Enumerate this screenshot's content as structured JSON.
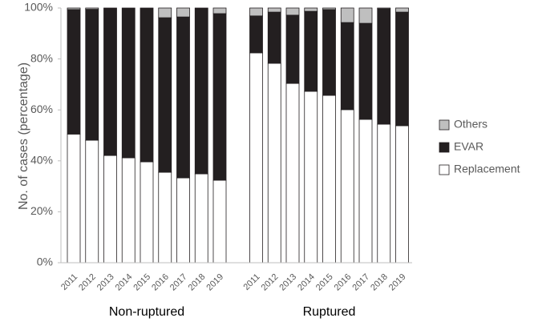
{
  "chart_data": {
    "type": "stacked_bar",
    "y_label": "No. of cases (percentage)",
    "groups": [
      "Non-ruptured",
      "Ruptured"
    ],
    "categories": [
      "2011",
      "2012",
      "2013",
      "2014",
      "2015",
      "2016",
      "2017",
      "2018",
      "2019",
      "2011",
      "2012",
      "2013",
      "2014",
      "2015",
      "2016",
      "2017",
      "2018",
      "2019"
    ],
    "series": [
      {
        "name": "Replacement",
        "color": "#ffffff",
        "values": [
          50.5,
          48.1,
          42.1,
          41.2,
          39.6,
          35.5,
          33.3,
          34.9,
          32.4,
          82.4,
          78.3,
          70.4,
          67.3,
          65.7,
          60.1,
          56.3,
          54.4,
          53.8
        ]
      },
      {
        "name": "EVAR",
        "color": "#231f20",
        "values": [
          48.9,
          51.4,
          57.9,
          58.8,
          60.4,
          60.7,
          63.2,
          65.1,
          65.4,
          14.5,
          20.1,
          26.8,
          31.4,
          33.7,
          34.2,
          37.7,
          45.3,
          44.6
        ]
      },
      {
        "name": "Others",
        "color": "#bfbfbf",
        "values": [
          0.6,
          0.5,
          0,
          0,
          0,
          3.8,
          3.5,
          0,
          2.2,
          3.1,
          1.6,
          2.8,
          1.3,
          0.6,
          5.7,
          6.0,
          0.3,
          1.6
        ]
      }
    ],
    "ylim": [
      0,
      100
    ],
    "yticks": [
      {
        "value": 0,
        "label": "0%"
      },
      {
        "value": 20,
        "label": "20%"
      },
      {
        "value": 40,
        "label": "40%"
      },
      {
        "value": 60,
        "label": "60%"
      },
      {
        "value": 80,
        "label": "80%"
      },
      {
        "value": 100,
        "label": "100%"
      }
    ],
    "legend": "right"
  }
}
